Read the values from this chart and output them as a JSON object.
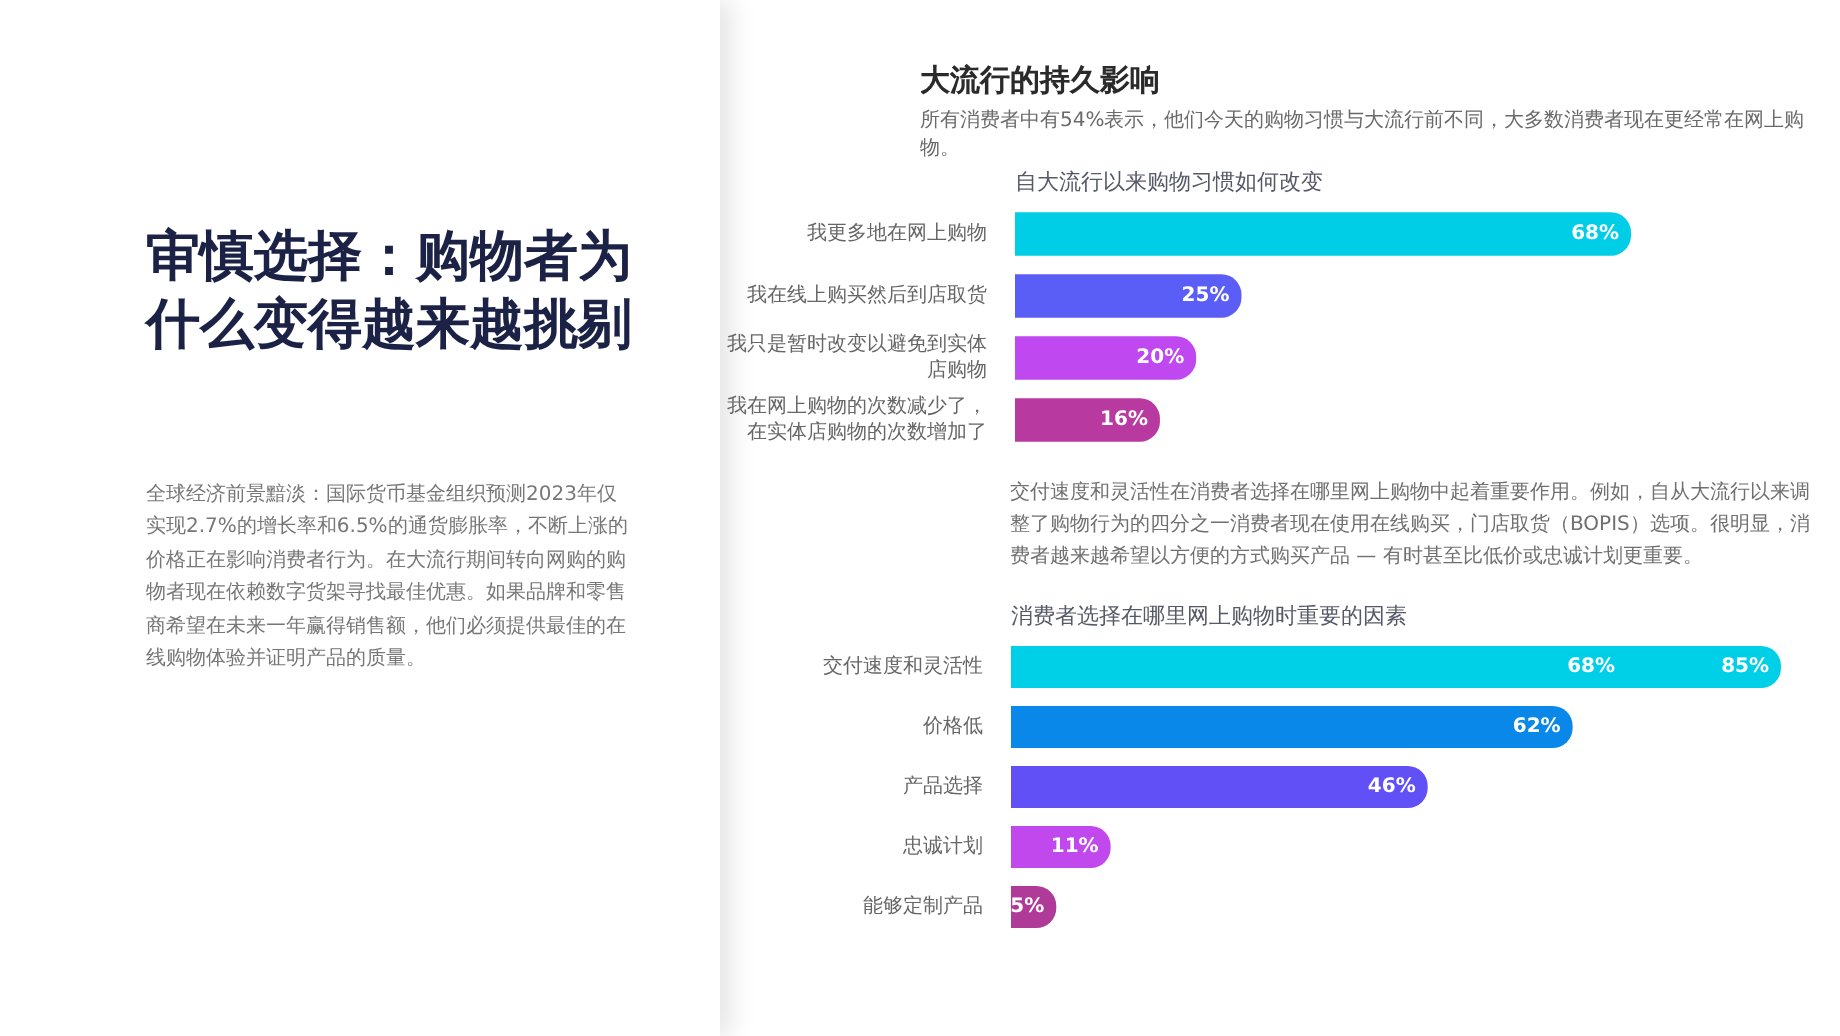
{
  "chart_data": [
    {
      "type": "other",
      "title": "审慎选择：购物者为什么变得越来越挑剔",
      "annotations": [
        "全球经济前景黯淡：国际货币基金组织预测2023年仅实现2.7%的增长率和6.5%的通货膨胀率，不断上涨的价格正在影响消费者行为。在大流行期间转向网购的购物者现在依赖数字货架寻找最佳优惠。如果品牌和零售商希望在未来一年赢得销售额，他们必须提供最佳的在线购物体验并证明产品的质量。"
      ]
    },
    {
      "type": "other",
      "title": "大流行的持久影响",
      "subtitle": "所有消费者中有54%表示，他们今天的购物习惯与大流行前不同，大多数消费者现在更经常在网上购物。"
    },
    {
      "type": "bar",
      "orientation": "horizontal",
      "title": "自大流行以来购物习惯如何改变",
      "categories": [
        "我更多地在网上购物",
        "我在线上购买然后到店取货",
        "我只是暂时改变以避免到实体店购物",
        "我在网上购物的次数减少了，在实体店购物的次数增加了"
      ],
      "values": [
        68,
        25,
        20,
        16
      ],
      "value_labels": [
        "68%",
        "25%",
        "20%",
        "16%"
      ],
      "colors": [
        "#00cde6",
        "#5a5ef6",
        "#c048f0",
        "#b83aa0"
      ],
      "tick_labels": "y",
      "annotations": [
        "交付速度和灵活性在消费者选择在哪里网上购物中起着重要作用。例如，自从大流行以来调整了购物行为的四分之一消费者现在使用在线购买，门店取货（BOPIS）选项。很明显，消费者越来越希望以方便的方式购买产品 — 有时甚至比低价或忠诚计划更重要。"
      ]
    },
    {
      "type": "bar",
      "orientation": "horizontal",
      "title": "消费者选择在哪里网上购物时重要的因素",
      "categories": [
        "交付速度和灵活性",
        "价格低",
        "产品选择",
        "忠诚计划",
        "能够定制产品"
      ],
      "values": [
        85,
        62,
        46,
        11,
        5
      ],
      "value_labels": [
        "85%",
        "62%",
        "46%",
        "11%",
        "5%"
      ],
      "colors": [
        "#00cfe8",
        "#0a88ea",
        "#6050f5",
        "#c048ec",
        "#b03a98"
      ],
      "tick_labels": "y",
      "annotations": [
        {
          "text": "68%",
          "x": 68,
          "y": "交付速度和灵活性"
        }
      ]
    }
  ]
}
